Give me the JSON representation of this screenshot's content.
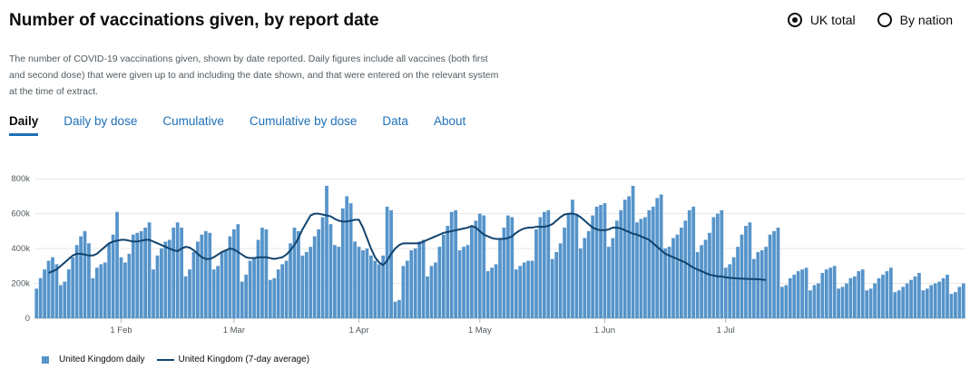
{
  "page": {
    "title": "Number of vaccinations given, by report date",
    "description": "The number of COVID-19 vaccinations given, shown by date reported. Daily figures include all vaccines (both first and second dose) that were given up to and including the date shown, and that were entered on the relevant system at the time of extract."
  },
  "radios": [
    {
      "label": "UK total",
      "selected": true
    },
    {
      "label": "By nation",
      "selected": false
    }
  ],
  "tabs": [
    {
      "label": "Daily",
      "active": true
    },
    {
      "label": "Daily by dose",
      "active": false
    },
    {
      "label": "Cumulative",
      "active": false
    },
    {
      "label": "Cumulative by dose",
      "active": false
    },
    {
      "label": "Data",
      "active": false
    },
    {
      "label": "About",
      "active": false
    }
  ],
  "legend": {
    "bars_label": "United Kingdom daily",
    "line_label": "United Kingdom (7-day average)"
  },
  "colors": {
    "bars": "#5694ca",
    "line": "#12436d",
    "accent": "#1d70b8"
  },
  "chart_data": {
    "type": "bar",
    "title": "",
    "xlabel": "",
    "ylabel": "",
    "ylim": [
      0,
      900000
    ],
    "yticks": [
      "0",
      "200k",
      "400k",
      "600k",
      "800k"
    ],
    "ytick_values": [
      0,
      200000,
      400000,
      600000,
      800000
    ],
    "xticks": [
      "1 Feb",
      "1 Mar",
      "1 Apr",
      "1 May",
      "1 Jun",
      "1 Jul"
    ],
    "xtick_index": [
      21,
      49,
      80,
      110,
      141,
      171
    ],
    "x_first": "11 Jan",
    "series": [
      {
        "name": "United Kingdom daily",
        "type": "bar",
        "values": [
          170000,
          230000,
          280000,
          330000,
          350000,
          310000,
          190000,
          210000,
          280000,
          350000,
          420000,
          470000,
          500000,
          430000,
          230000,
          290000,
          310000,
          320000,
          430000,
          480000,
          610000,
          350000,
          320000,
          370000,
          480000,
          490000,
          500000,
          520000,
          550000,
          280000,
          360000,
          400000,
          440000,
          450000,
          520000,
          550000,
          520000,
          240000,
          280000,
          380000,
          440000,
          480000,
          500000,
          490000,
          280000,
          300000,
          380000,
          390000,
          470000,
          510000,
          540000,
          210000,
          250000,
          330000,
          350000,
          450000,
          520000,
          510000,
          220000,
          230000,
          280000,
          310000,
          330000,
          430000,
          520000,
          500000,
          360000,
          380000,
          410000,
          470000,
          510000,
          580000,
          760000,
          540000,
          420000,
          410000,
          630000,
          700000,
          660000,
          440000,
          410000,
          390000,
          400000,
          360000,
          330000,
          310000,
          360000,
          640000,
          620000,
          95000,
          105000,
          300000,
          330000,
          390000,
          400000,
          440000,
          450000,
          240000,
          300000,
          320000,
          410000,
          480000,
          530000,
          610000,
          620000,
          390000,
          410000,
          420000,
          530000,
          560000,
          600000,
          590000,
          270000,
          290000,
          310000,
          450000,
          520000,
          590000,
          580000,
          280000,
          300000,
          320000,
          330000,
          330000,
          510000,
          580000,
          610000,
          620000,
          340000,
          380000,
          430000,
          520000,
          600000,
          680000,
          590000,
          400000,
          460000,
          500000,
          590000,
          640000,
          650000,
          660000,
          410000,
          460000,
          560000,
          620000,
          680000,
          700000,
          760000,
          550000,
          570000,
          580000,
          620000,
          640000,
          690000,
          710000,
          400000,
          410000,
          460000,
          480000,
          520000,
          560000,
          620000,
          640000,
          380000,
          420000,
          450000,
          490000,
          580000,
          600000,
          620000,
          290000,
          310000,
          350000,
          410000,
          480000,
          530000,
          550000,
          340000,
          380000,
          390000,
          410000,
          480000,
          500000,
          520000,
          180000,
          190000,
          230000,
          250000,
          270000,
          280000,
          290000,
          160000,
          190000,
          200000,
          260000,
          280000,
          290000,
          300000,
          170000,
          180000,
          200000,
          230000,
          240000,
          270000,
          280000,
          160000,
          170000,
          200000,
          230000,
          250000,
          270000,
          290000,
          150000,
          160000,
          180000,
          200000,
          220000,
          240000,
          260000,
          160000,
          170000,
          190000,
          200000,
          210000,
          230000,
          250000,
          140000,
          150000,
          180000,
          200000
        ]
      },
      {
        "name": "United Kingdom (7-day average)",
        "type": "line",
        "start_index": 3,
        "values": [
          260000,
          270000,
          280000,
          300000,
          320000,
          340000,
          360000,
          370000,
          370000,
          365000,
          360000,
          360000,
          370000,
          390000,
          410000,
          430000,
          440000,
          445000,
          450000,
          450000,
          445000,
          440000,
          440000,
          445000,
          450000,
          450000,
          440000,
          430000,
          420000,
          410000,
          400000,
          390000,
          385000,
          400000,
          410000,
          405000,
          390000,
          370000,
          350000,
          340000,
          340000,
          350000,
          365000,
          380000,
          390000,
          400000,
          395000,
          380000,
          365000,
          350000,
          345000,
          345000,
          350000,
          350000,
          350000,
          345000,
          340000,
          345000,
          350000,
          365000,
          390000,
          420000,
          460000,
          510000,
          550000,
          590000,
          600000,
          600000,
          595000,
          590000,
          585000,
          570000,
          560000,
          555000,
          555000,
          560000,
          565000,
          565000,
          520000,
          460000,
          400000,
          350000,
          320000,
          305000,
          330000,
          370000,
          400000,
          420000,
          430000,
          430000,
          430000,
          430000,
          430000,
          440000,
          450000,
          460000,
          470000,
          480000,
          490000,
          495000,
          500000,
          505000,
          510000,
          515000,
          520000,
          530000,
          520000,
          500000,
          480000,
          470000,
          460000,
          455000,
          455000,
          455000,
          460000,
          470000,
          490000,
          505000,
          515000,
          520000,
          520000,
          525000,
          525000,
          525000,
          530000,
          540000,
          560000,
          580000,
          595000,
          600000,
          600000,
          595000,
          580000,
          560000,
          540000,
          520000,
          510000,
          505000,
          505000,
          510000,
          520000,
          520000,
          515000,
          505000,
          495000,
          485000,
          480000,
          470000,
          460000,
          450000,
          430000,
          410000,
          390000,
          370000,
          360000,
          350000,
          340000,
          330000,
          320000,
          305000,
          290000,
          280000,
          270000,
          260000,
          250000,
          245000,
          240000,
          240000,
          235000,
          232000,
          230000,
          228000,
          227000,
          226000,
          225000,
          225000,
          224000,
          222000,
          220000
        ]
      }
    ],
    "grid": true
  }
}
